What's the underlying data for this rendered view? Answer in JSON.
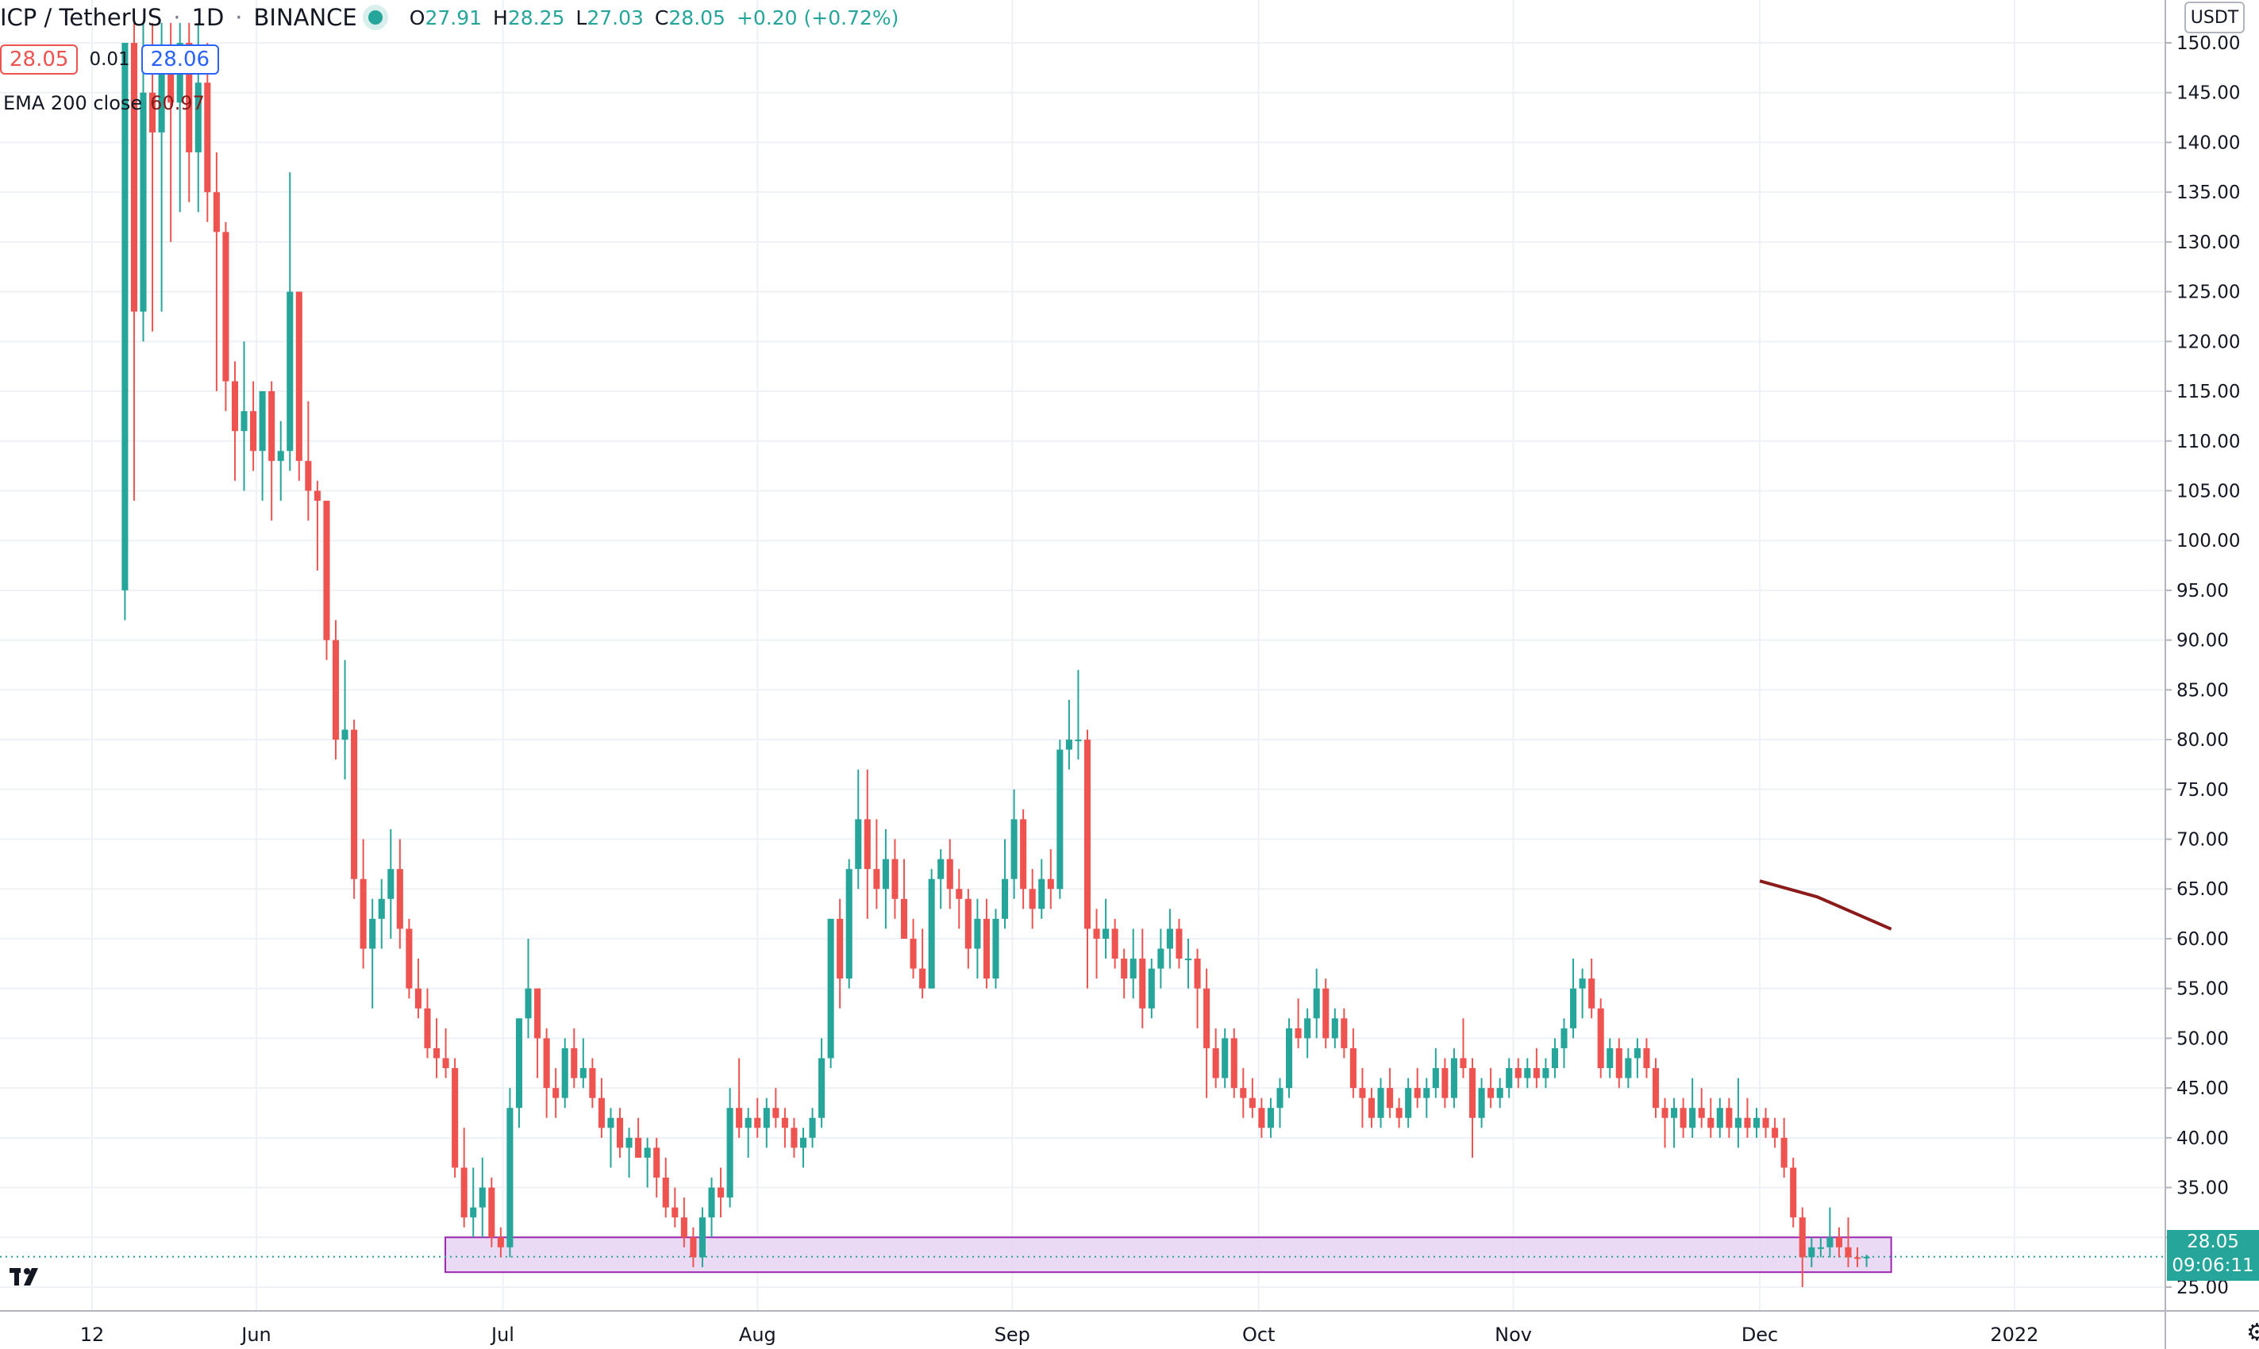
{
  "header": {
    "symbol": "ICP / TetherUS",
    "interval": "1D",
    "exchange": "BINANCE",
    "open_label": "O",
    "open": "27.91",
    "high_label": "H",
    "high": "28.25",
    "low_label": "L",
    "low": "27.03",
    "close_label": "C",
    "close": "28.05",
    "change": "+0.20 (+0.72%)",
    "bid": "28.05",
    "spread": "0.01",
    "ask": "28.06"
  },
  "indicator": {
    "label": "EMA 200 close",
    "value": "60.97"
  },
  "price_axis": {
    "currency": "USDT"
  },
  "last_price": {
    "price": "28.05",
    "countdown": "09:06:11"
  },
  "colors": {
    "up": "#26a69a",
    "down": "#ef5350",
    "ema": "#8b1a1a",
    "zone_fill": "#e7d3f1",
    "zone_border": "#9c27b0"
  },
  "chart_data": {
    "type": "candlestick",
    "ylim": [
      22,
      152
    ],
    "y_ticks": [
      "150.00",
      "145.00",
      "140.00",
      "135.00",
      "130.00",
      "125.00",
      "120.00",
      "115.00",
      "110.00",
      "105.00",
      "100.00",
      "95.00",
      "90.00",
      "85.00",
      "80.00",
      "75.00",
      "70.00",
      "65.00",
      "60.00",
      "55.00",
      "50.00",
      "45.00",
      "40.00",
      "35.00",
      "30.00",
      "25.00"
    ],
    "x_ticks": [
      {
        "label": "12",
        "date": "2021-05-12"
      },
      {
        "label": "Jun",
        "date": "2021-06-01"
      },
      {
        "label": "Jul",
        "date": "2021-07-01"
      },
      {
        "label": "Aug",
        "date": "2021-08-01"
      },
      {
        "label": "Sep",
        "date": "2021-09-01"
      },
      {
        "label": "Oct",
        "date": "2021-10-01"
      },
      {
        "label": "Nov",
        "date": "2021-11-01"
      },
      {
        "label": "Dec",
        "date": "2021-12-01"
      },
      {
        "label": "2022",
        "date": "2022-01-01"
      }
    ],
    "x_start": "2021-05-12",
    "support_zone": {
      "low": 26.5,
      "high": 30.0,
      "from": "2021-06-24",
      "to": "2021-12-17"
    },
    "ema200": [
      {
        "date": "2021-12-01",
        "value": 65.8
      },
      {
        "date": "2021-12-08",
        "value": 64.2
      },
      {
        "date": "2021-12-17",
        "value": 60.97
      }
    ],
    "candles": [
      {
        "o": 95,
        "h": 150,
        "l": 92,
        "c": 150
      },
      {
        "o": 150,
        "h": 152,
        "l": 104,
        "c": 123
      },
      {
        "o": 123,
        "h": 152,
        "l": 120,
        "c": 145
      },
      {
        "o": 145,
        "h": 152,
        "l": 121,
        "c": 141
      },
      {
        "o": 141,
        "h": 152,
        "l": 123,
        "c": 148
      },
      {
        "o": 148,
        "h": 152,
        "l": 130,
        "c": 144
      },
      {
        "o": 144,
        "h": 152,
        "l": 133,
        "c": 150
      },
      {
        "o": 150,
        "h": 152,
        "l": 134,
        "c": 139
      },
      {
        "o": 139,
        "h": 152,
        "l": 133,
        "c": 146
      },
      {
        "o": 146,
        "h": 150,
        "l": 132,
        "c": 135
      },
      {
        "o": 135,
        "h": 139,
        "l": 115,
        "c": 131
      },
      {
        "o": 131,
        "h": 132,
        "l": 113,
        "c": 116
      },
      {
        "o": 116,
        "h": 118,
        "l": 106,
        "c": 111
      },
      {
        "o": 111,
        "h": 120,
        "l": 105,
        "c": 113
      },
      {
        "o": 113,
        "h": 116,
        "l": 107,
        "c": 109
      },
      {
        "o": 109,
        "h": 115,
        "l": 104,
        "c": 115
      },
      {
        "o": 115,
        "h": 116,
        "l": 102,
        "c": 108
      },
      {
        "o": 108,
        "h": 112,
        "l": 104,
        "c": 109
      },
      {
        "o": 109,
        "h": 137,
        "l": 107,
        "c": 125
      },
      {
        "o": 125,
        "h": 125,
        "l": 106,
        "c": 108
      },
      {
        "o": 108,
        "h": 114,
        "l": 102,
        "c": 105
      },
      {
        "o": 105,
        "h": 106,
        "l": 97,
        "c": 104
      },
      {
        "o": 104,
        "h": 104,
        "l": 88,
        "c": 90
      },
      {
        "o": 90,
        "h": 92,
        "l": 78,
        "c": 80
      },
      {
        "o": 80,
        "h": 88,
        "l": 76,
        "c": 81
      },
      {
        "o": 81,
        "h": 82,
        "l": 64,
        "c": 66
      },
      {
        "o": 66,
        "h": 70,
        "l": 57,
        "c": 59
      },
      {
        "o": 59,
        "h": 64,
        "l": 53,
        "c": 62
      },
      {
        "o": 62,
        "h": 66,
        "l": 59,
        "c": 64
      },
      {
        "o": 64,
        "h": 71,
        "l": 60,
        "c": 67
      },
      {
        "o": 67,
        "h": 70,
        "l": 59,
        "c": 61
      },
      {
        "o": 61,
        "h": 62,
        "l": 54,
        "c": 55
      },
      {
        "o": 55,
        "h": 58,
        "l": 52,
        "c": 53
      },
      {
        "o": 53,
        "h": 55,
        "l": 48,
        "c": 49
      },
      {
        "o": 49,
        "h": 52,
        "l": 46,
        "c": 48
      },
      {
        "o": 48,
        "h": 51,
        "l": 46,
        "c": 47
      },
      {
        "o": 47,
        "h": 48,
        "l": 36,
        "c": 37
      },
      {
        "o": 37,
        "h": 41,
        "l": 31,
        "c": 32
      },
      {
        "o": 32,
        "h": 37,
        "l": 30,
        "c": 33
      },
      {
        "o": 33,
        "h": 38,
        "l": 30,
        "c": 35
      },
      {
        "o": 35,
        "h": 36,
        "l": 29,
        "c": 30
      },
      {
        "o": 30,
        "h": 31,
        "l": 28,
        "c": 29
      },
      {
        "o": 29,
        "h": 45,
        "l": 28,
        "c": 43
      },
      {
        "o": 43,
        "h": 52,
        "l": 41,
        "c": 52
      },
      {
        "o": 52,
        "h": 60,
        "l": 50,
        "c": 55
      },
      {
        "o": 55,
        "h": 55,
        "l": 46,
        "c": 50
      },
      {
        "o": 50,
        "h": 51,
        "l": 42,
        "c": 45
      },
      {
        "o": 45,
        "h": 47,
        "l": 42,
        "c": 44
      },
      {
        "o": 44,
        "h": 50,
        "l": 43,
        "c": 49
      },
      {
        "o": 49,
        "h": 51,
        "l": 45,
        "c": 46
      },
      {
        "o": 46,
        "h": 50,
        "l": 45,
        "c": 47
      },
      {
        "o": 47,
        "h": 48,
        "l": 43,
        "c": 44
      },
      {
        "o": 44,
        "h": 46,
        "l": 40,
        "c": 41
      },
      {
        "o": 41,
        "h": 43,
        "l": 37,
        "c": 42
      },
      {
        "o": 42,
        "h": 43,
        "l": 38,
        "c": 39
      },
      {
        "o": 39,
        "h": 41,
        "l": 36,
        "c": 40
      },
      {
        "o": 40,
        "h": 42,
        "l": 38,
        "c": 38
      },
      {
        "o": 38,
        "h": 40,
        "l": 35,
        "c": 39
      },
      {
        "o": 39,
        "h": 40,
        "l": 34,
        "c": 36
      },
      {
        "o": 36,
        "h": 38,
        "l": 32,
        "c": 33
      },
      {
        "o": 33,
        "h": 35,
        "l": 31,
        "c": 32
      },
      {
        "o": 32,
        "h": 34,
        "l": 29,
        "c": 30
      },
      {
        "o": 30,
        "h": 31,
        "l": 27,
        "c": 28
      },
      {
        "o": 28,
        "h": 33,
        "l": 27,
        "c": 32
      },
      {
        "o": 32,
        "h": 36,
        "l": 30,
        "c": 35
      },
      {
        "o": 35,
        "h": 37,
        "l": 32,
        "c": 34
      },
      {
        "o": 34,
        "h": 45,
        "l": 33,
        "c": 43
      },
      {
        "o": 43,
        "h": 48,
        "l": 40,
        "c": 41
      },
      {
        "o": 41,
        "h": 43,
        "l": 38,
        "c": 42
      },
      {
        "o": 42,
        "h": 44,
        "l": 40,
        "c": 41
      },
      {
        "o": 41,
        "h": 44,
        "l": 39,
        "c": 43
      },
      {
        "o": 43,
        "h": 45,
        "l": 41,
        "c": 42
      },
      {
        "o": 42,
        "h": 43,
        "l": 39,
        "c": 41
      },
      {
        "o": 41,
        "h": 42,
        "l": 38,
        "c": 39
      },
      {
        "o": 39,
        "h": 41,
        "l": 37,
        "c": 40
      },
      {
        "o": 40,
        "h": 43,
        "l": 39,
        "c": 42
      },
      {
        "o": 42,
        "h": 50,
        "l": 41,
        "c": 48
      },
      {
        "o": 48,
        "h": 62,
        "l": 47,
        "c": 62
      },
      {
        "o": 62,
        "h": 64,
        "l": 53,
        "c": 56
      },
      {
        "o": 56,
        "h": 68,
        "l": 55,
        "c": 67
      },
      {
        "o": 67,
        "h": 77,
        "l": 65,
        "c": 72
      },
      {
        "o": 72,
        "h": 77,
        "l": 62,
        "c": 67
      },
      {
        "o": 67,
        "h": 72,
        "l": 63,
        "c": 65
      },
      {
        "o": 65,
        "h": 71,
        "l": 61,
        "c": 68
      },
      {
        "o": 68,
        "h": 70,
        "l": 62,
        "c": 64
      },
      {
        "o": 64,
        "h": 68,
        "l": 60,
        "c": 60
      },
      {
        "o": 60,
        "h": 62,
        "l": 56,
        "c": 57
      },
      {
        "o": 57,
        "h": 61,
        "l": 54,
        "c": 55
      },
      {
        "o": 55,
        "h": 67,
        "l": 55,
        "c": 66
      },
      {
        "o": 66,
        "h": 69,
        "l": 63,
        "c": 68
      },
      {
        "o": 68,
        "h": 70,
        "l": 63,
        "c": 65
      },
      {
        "o": 65,
        "h": 67,
        "l": 61,
        "c": 64
      },
      {
        "o": 64,
        "h": 65,
        "l": 57,
        "c": 59
      },
      {
        "o": 59,
        "h": 64,
        "l": 56,
        "c": 62
      },
      {
        "o": 62,
        "h": 64,
        "l": 55,
        "c": 56
      },
      {
        "o": 56,
        "h": 63,
        "l": 55,
        "c": 62
      },
      {
        "o": 62,
        "h": 70,
        "l": 61,
        "c": 66
      },
      {
        "o": 66,
        "h": 75,
        "l": 64,
        "c": 72
      },
      {
        "o": 72,
        "h": 73,
        "l": 63,
        "c": 65
      },
      {
        "o": 65,
        "h": 67,
        "l": 61,
        "c": 63
      },
      {
        "o": 63,
        "h": 68,
        "l": 62,
        "c": 66
      },
      {
        "o": 66,
        "h": 69,
        "l": 63,
        "c": 65
      },
      {
        "o": 65,
        "h": 80,
        "l": 64,
        "c": 79
      },
      {
        "o": 79,
        "h": 84,
        "l": 77,
        "c": 80
      },
      {
        "o": 80,
        "h": 87,
        "l": 78,
        "c": 80
      },
      {
        "o": 80,
        "h": 81,
        "l": 55,
        "c": 61
      },
      {
        "o": 61,
        "h": 63,
        "l": 56,
        "c": 60
      },
      {
        "o": 60,
        "h": 64,
        "l": 58,
        "c": 61
      },
      {
        "o": 61,
        "h": 62,
        "l": 57,
        "c": 58
      },
      {
        "o": 58,
        "h": 59,
        "l": 54,
        "c": 56
      },
      {
        "o": 56,
        "h": 61,
        "l": 54,
        "c": 58
      },
      {
        "o": 58,
        "h": 61,
        "l": 51,
        "c": 53
      },
      {
        "o": 53,
        "h": 58,
        "l": 52,
        "c": 57
      },
      {
        "o": 57,
        "h": 61,
        "l": 55,
        "c": 59
      },
      {
        "o": 59,
        "h": 63,
        "l": 57,
        "c": 61
      },
      {
        "o": 61,
        "h": 62,
        "l": 57,
        "c": 58
      },
      {
        "o": 58,
        "h": 60,
        "l": 55,
        "c": 58
      },
      {
        "o": 58,
        "h": 59,
        "l": 51,
        "c": 55
      },
      {
        "o": 55,
        "h": 57,
        "l": 44,
        "c": 49
      },
      {
        "o": 49,
        "h": 51,
        "l": 45,
        "c": 46
      },
      {
        "o": 46,
        "h": 51,
        "l": 45,
        "c": 50
      },
      {
        "o": 50,
        "h": 51,
        "l": 44,
        "c": 45
      },
      {
        "o": 45,
        "h": 47,
        "l": 42,
        "c": 44
      },
      {
        "o": 44,
        "h": 46,
        "l": 42,
        "c": 43
      },
      {
        "o": 43,
        "h": 44,
        "l": 40,
        "c": 41
      },
      {
        "o": 41,
        "h": 44,
        "l": 40,
        "c": 43
      },
      {
        "o": 43,
        "h": 46,
        "l": 41,
        "c": 45
      },
      {
        "o": 45,
        "h": 52,
        "l": 44,
        "c": 51
      },
      {
        "o": 51,
        "h": 54,
        "l": 49,
        "c": 50
      },
      {
        "o": 50,
        "h": 53,
        "l": 48,
        "c": 52
      },
      {
        "o": 52,
        "h": 57,
        "l": 50,
        "c": 55
      },
      {
        "o": 55,
        "h": 56,
        "l": 49,
        "c": 50
      },
      {
        "o": 50,
        "h": 53,
        "l": 49,
        "c": 52
      },
      {
        "o": 52,
        "h": 53,
        "l": 48,
        "c": 49
      },
      {
        "o": 49,
        "h": 51,
        "l": 44,
        "c": 45
      },
      {
        "o": 45,
        "h": 47,
        "l": 41,
        "c": 44
      },
      {
        "o": 44,
        "h": 45,
        "l": 41,
        "c": 42
      },
      {
        "o": 42,
        "h": 46,
        "l": 41,
        "c": 45
      },
      {
        "o": 45,
        "h": 47,
        "l": 42,
        "c": 43
      },
      {
        "o": 43,
        "h": 44,
        "l": 41,
        "c": 42
      },
      {
        "o": 42,
        "h": 46,
        "l": 41,
        "c": 45
      },
      {
        "o": 45,
        "h": 47,
        "l": 43,
        "c": 44
      },
      {
        "o": 44,
        "h": 46,
        "l": 42,
        "c": 45
      },
      {
        "o": 45,
        "h": 49,
        "l": 44,
        "c": 47
      },
      {
        "o": 47,
        "h": 48,
        "l": 43,
        "c": 44
      },
      {
        "o": 44,
        "h": 49,
        "l": 43,
        "c": 48
      },
      {
        "o": 48,
        "h": 52,
        "l": 46,
        "c": 47
      },
      {
        "o": 47,
        "h": 48,
        "l": 38,
        "c": 42
      },
      {
        "o": 42,
        "h": 46,
        "l": 41,
        "c": 45
      },
      {
        "o": 45,
        "h": 47,
        "l": 43,
        "c": 44
      },
      {
        "o": 44,
        "h": 46,
        "l": 43,
        "c": 45
      },
      {
        "o": 45,
        "h": 48,
        "l": 44,
        "c": 47
      },
      {
        "o": 47,
        "h": 48,
        "l": 45,
        "c": 46
      },
      {
        "o": 46,
        "h": 48,
        "l": 45,
        "c": 47
      },
      {
        "o": 47,
        "h": 49,
        "l": 45,
        "c": 46
      },
      {
        "o": 46,
        "h": 48,
        "l": 45,
        "c": 47
      },
      {
        "o": 47,
        "h": 50,
        "l": 46,
        "c": 49
      },
      {
        "o": 49,
        "h": 52,
        "l": 47,
        "c": 51
      },
      {
        "o": 51,
        "h": 58,
        "l": 50,
        "c": 55
      },
      {
        "o": 55,
        "h": 57,
        "l": 52,
        "c": 56
      },
      {
        "o": 56,
        "h": 58,
        "l": 52,
        "c": 53
      },
      {
        "o": 53,
        "h": 54,
        "l": 46,
        "c": 47
      },
      {
        "o": 47,
        "h": 50,
        "l": 46,
        "c": 49
      },
      {
        "o": 49,
        "h": 50,
        "l": 45,
        "c": 46
      },
      {
        "o": 46,
        "h": 49,
        "l": 45,
        "c": 48
      },
      {
        "o": 48,
        "h": 50,
        "l": 46,
        "c": 49
      },
      {
        "o": 49,
        "h": 50,
        "l": 46,
        "c": 47
      },
      {
        "o": 47,
        "h": 48,
        "l": 42,
        "c": 43
      },
      {
        "o": 43,
        "h": 44,
        "l": 39,
        "c": 42
      },
      {
        "o": 42,
        "h": 44,
        "l": 39,
        "c": 43
      },
      {
        "o": 43,
        "h": 44,
        "l": 40,
        "c": 41
      },
      {
        "o": 41,
        "h": 46,
        "l": 40,
        "c": 43
      },
      {
        "o": 43,
        "h": 45,
        "l": 41,
        "c": 42
      },
      {
        "o": 42,
        "h": 44,
        "l": 40,
        "c": 41
      },
      {
        "o": 41,
        "h": 44,
        "l": 40,
        "c": 43
      },
      {
        "o": 43,
        "h": 44,
        "l": 40,
        "c": 41
      },
      {
        "o": 41,
        "h": 46,
        "l": 39,
        "c": 42
      },
      {
        "o": 42,
        "h": 44,
        "l": 40,
        "c": 41
      },
      {
        "o": 41,
        "h": 43,
        "l": 40,
        "c": 42
      },
      {
        "o": 42,
        "h": 43,
        "l": 40,
        "c": 41
      },
      {
        "o": 41,
        "h": 42,
        "l": 39,
        "c": 40
      },
      {
        "o": 40,
        "h": 42,
        "l": 36,
        "c": 37
      },
      {
        "o": 37,
        "h": 38,
        "l": 31,
        "c": 32
      },
      {
        "o": 32,
        "h": 33,
        "l": 25,
        "c": 28
      },
      {
        "o": 28,
        "h": 30,
        "l": 27,
        "c": 29
      },
      {
        "o": 29,
        "h": 30,
        "l": 28,
        "c": 29
      },
      {
        "o": 29,
        "h": 33,
        "l": 28,
        "c": 30
      },
      {
        "o": 30,
        "h": 31,
        "l": 28,
        "c": 29
      },
      {
        "o": 29,
        "h": 32,
        "l": 27,
        "c": 28
      },
      {
        "o": 28,
        "h": 29,
        "l": 27,
        "c": 27.91
      },
      {
        "o": 27.91,
        "h": 28.25,
        "l": 27.03,
        "c": 28.05
      }
    ]
  }
}
